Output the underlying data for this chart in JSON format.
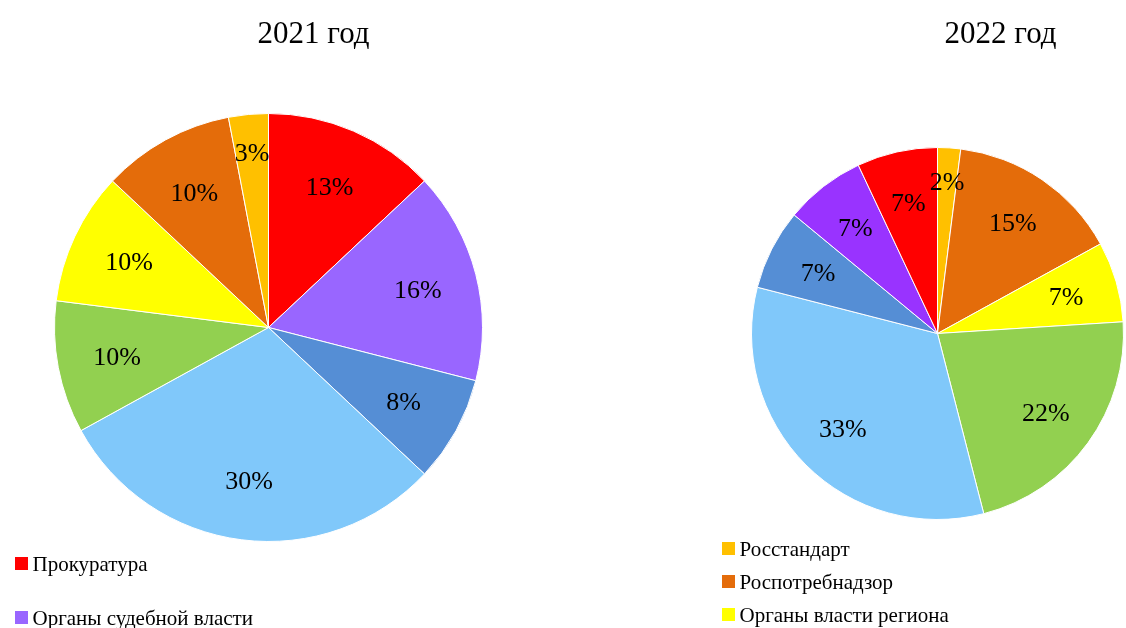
{
  "chart_data": [
    {
      "type": "pie",
      "title": "2021 год",
      "categories": [
        "Прокуратура",
        "Органы судебной власти",
        null,
        null,
        null,
        null,
        null,
        null
      ],
      "values": [
        13,
        16,
        8,
        30,
        10,
        10,
        10,
        3
      ],
      "colors": [
        "#ff0000",
        "#9966ff",
        "#558ed5",
        "#80c8fa",
        "#92d050",
        "#ffff00",
        "#e46c0a",
        "#ffc000"
      ],
      "value_labels": [
        "13%",
        "16%",
        "8%",
        "30%",
        "10%",
        "10%",
        "10%",
        "3%"
      ],
      "legend": "bottom left"
    },
    {
      "type": "pie",
      "title": "2022 год",
      "categories": [
        "Росстандарт",
        "Роспотребнадзор",
        "Органы власти региона",
        null,
        null,
        null,
        null,
        null
      ],
      "values": [
        2,
        15,
        7,
        22,
        33,
        7,
        7,
        7
      ],
      "colors": [
        "#ffc000",
        "#e46c0a",
        "#ffff00",
        "#92d050",
        "#80c8fa",
        "#558ed5",
        "#9933ff",
        "#ff0000"
      ],
      "value_labels": [
        "2%",
        "15%",
        "7%",
        "22%",
        "33%",
        "7%",
        "7%",
        "7%"
      ],
      "legend": "bottom left"
    }
  ]
}
